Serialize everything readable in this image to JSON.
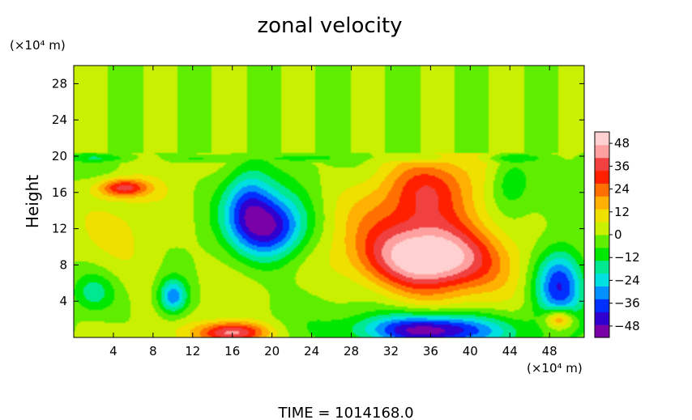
{
  "chart_data": {
    "type": "heatmap",
    "title": "zonal velocity",
    "xlabel": "",
    "ylabel": "Height",
    "x_unit_label": "(×10⁴ m)",
    "y_unit_label": "(×10⁴ m)",
    "xlim": [
      0,
      51.5
    ],
    "ylim": [
      0,
      30
    ],
    "x_ticks": [
      4,
      8,
      12,
      16,
      20,
      24,
      28,
      32,
      36,
      40,
      44,
      48
    ],
    "x_tick_labels": [
      "4",
      "8",
      "12",
      "16",
      "20",
      "24",
      "28",
      "32",
      "36",
      "40",
      "44",
      "48"
    ],
    "y_ticks": [
      4,
      8,
      12,
      16,
      20,
      24,
      28
    ],
    "y_tick_labels": [
      "4",
      "8",
      "12",
      "16",
      "20",
      "24",
      "28"
    ],
    "colorbar": {
      "range": [
        -54,
        54
      ],
      "ticks": [
        48,
        36,
        24,
        12,
        0,
        -12,
        -24,
        -36,
        -48
      ],
      "tick_labels": [
        "48",
        "36",
        "24",
        "12",
        "0",
        "−12",
        "−24",
        "−36",
        "−48"
      ],
      "colors": [
        "#7a00a8",
        "#3000d0",
        "#0030ff",
        "#0090ff",
        "#00e0e0",
        "#00e890",
        "#00e800",
        "#60ee00",
        "#c8f000",
        "#f0e000",
        "#ffb000",
        "#ff7000",
        "#ff2000",
        "#f04040",
        "#ffa0a0",
        "#ffd0d0"
      ]
    },
    "features": [
      {
        "x": 36,
        "y": 8.5,
        "value": 50,
        "sx": 6.5,
        "sy": 3.5
      },
      {
        "x": 35,
        "y": 13,
        "value": 25,
        "sx": 7,
        "sy": 6
      },
      {
        "x": 36,
        "y": 17,
        "value": 12,
        "sx": 4,
        "sy": 3
      },
      {
        "x": 36,
        "y": 0.8,
        "value": -55,
        "sx": 7,
        "sy": 1.8
      },
      {
        "x": 16,
        "y": 0.5,
        "value": 45,
        "sx": 3.5,
        "sy": 1.2
      },
      {
        "x": 20,
        "y": 12,
        "value": -45,
        "sx": 3.5,
        "sy": 3.5
      },
      {
        "x": 17.5,
        "y": 15,
        "value": -28,
        "sx": 2.5,
        "sy": 4
      },
      {
        "x": 10,
        "y": 4.5,
        "value": -35,
        "sx": 1.5,
        "sy": 2
      },
      {
        "x": 5,
        "y": 16.5,
        "value": 35,
        "sx": 2.5,
        "sy": 1
      },
      {
        "x": 49,
        "y": 6,
        "value": -42,
        "sx": 2.5,
        "sy": 4
      },
      {
        "x": 49,
        "y": 2,
        "value": 35,
        "sx": 1.5,
        "sy": 1.2
      },
      {
        "x": 6,
        "y": 10,
        "value": 8,
        "sx": 5,
        "sy": 5
      },
      {
        "x": 2,
        "y": 5,
        "value": -15,
        "sx": 2,
        "sy": 2
      },
      {
        "x": 44,
        "y": 17,
        "value": -15,
        "sx": 2,
        "sy": 3
      }
    ],
    "upper_layer_value": 0,
    "interface_height": 20
  },
  "footer": {
    "time_label": "TIME  =  1014168.0"
  }
}
